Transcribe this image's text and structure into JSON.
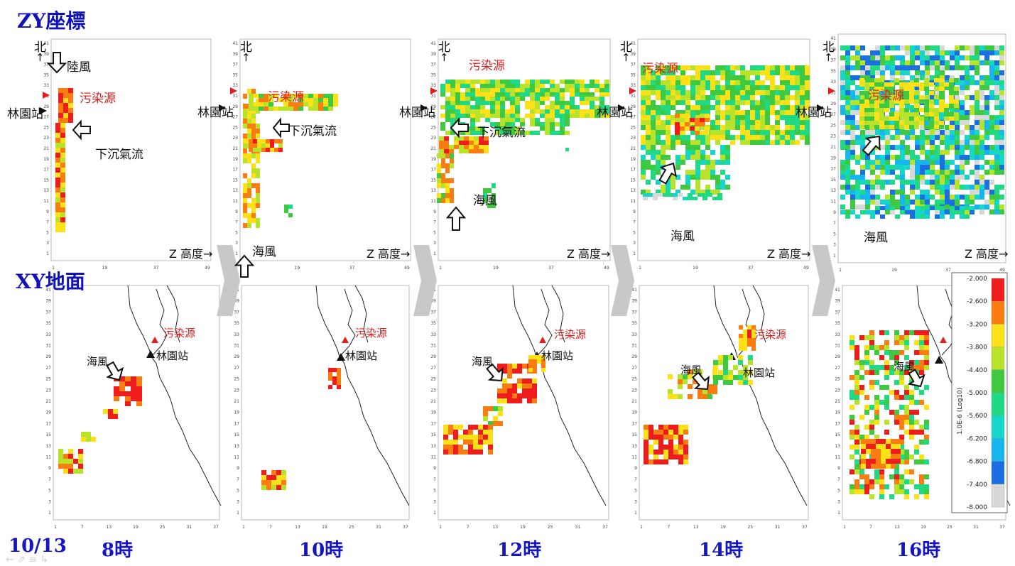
{
  "headers": {
    "zy": "ZY座標",
    "xy": "XY地面"
  },
  "date": "10/13",
  "times": [
    "8時",
    "10時",
    "12時",
    "14時",
    "16時"
  ],
  "labels": {
    "north": "北",
    "north_arrow": "↑",
    "station": "林園站",
    "source": "污染源",
    "land_breeze": "陸風",
    "downdraft": "下沉氣流",
    "sea_breeze": "海風",
    "z_height": "Z 高度→",
    "station_arrow": "➜"
  },
  "zy_y_ticks": [
    "41",
    "39",
    "37",
    "35",
    "33",
    "31",
    "29",
    "27",
    "25",
    "23",
    "21",
    "19",
    "17",
    "15",
    "13",
    "11",
    "9",
    "7",
    "5",
    "3",
    "1"
  ],
  "zy_x_ticks": [
    "1",
    "19",
    "37",
    "49"
  ],
  "xy_y_ticks": [
    "41",
    "39",
    "37",
    "35",
    "33",
    "31",
    "29",
    "27",
    "25",
    "23",
    "21",
    "19",
    "17",
    "15",
    "13",
    "11",
    "9",
    "7",
    "5",
    "3",
    "1"
  ],
  "xy_x_ticks": [
    "1",
    "7",
    "13",
    "19",
    "25",
    "31",
    "37"
  ],
  "colorbar": {
    "title": "1.0E-6 (Log10)",
    "levels": [
      "-2.000",
      "-2.600",
      "-3.200",
      "-3.800",
      "-4.400",
      "-5.000",
      "-5.600",
      "-6.200",
      "-6.800",
      "-7.400",
      "-8.000"
    ],
    "colors": [
      "#ee1c1c",
      "#f97d10",
      "#fde118",
      "#b9e22a",
      "#3fc940",
      "#1fd985",
      "#15d7c9",
      "#18b6ef",
      "#1c6fe0",
      "#d8d8d8"
    ]
  }
}
